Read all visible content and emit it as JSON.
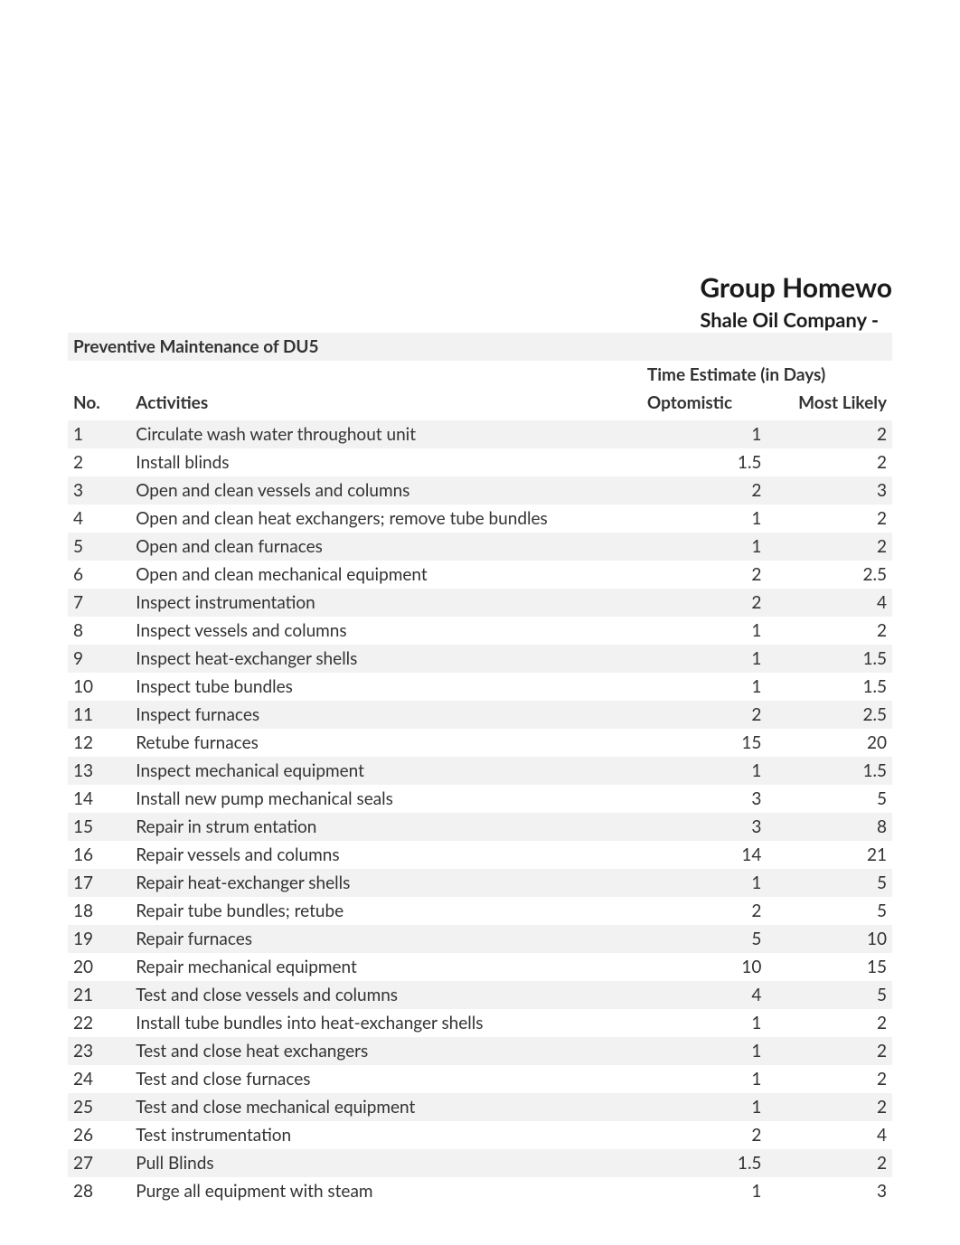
{
  "header": {
    "main_title": "Group Homewo",
    "sub_title": "Shale Oil Company -"
  },
  "section_title": "Preventive Maintenance of DU5",
  "table": {
    "estimate_header": "Time Estimate (in Days)",
    "columns": {
      "no": "No.",
      "activities": "Activities",
      "optimistic": "Optomistic",
      "most_likely": "Most Likely"
    },
    "rows": [
      {
        "no": "1",
        "activity": "Circulate wash water throughout unit",
        "opt": "1",
        "ml": "2"
      },
      {
        "no": "2",
        "activity": "Install blinds",
        "opt": "1.5",
        "ml": "2"
      },
      {
        "no": "3",
        "activity": "Open and clean vessels and columns",
        "opt": "2",
        "ml": "3"
      },
      {
        "no": "4",
        "activity": "Open and clean heat exchangers; remove tube bundles",
        "opt": "1",
        "ml": "2"
      },
      {
        "no": "5",
        "activity": "Open and clean furnaces",
        "opt": "1",
        "ml": "2"
      },
      {
        "no": "6",
        "activity": "Open and clean mechanical equipment",
        "opt": "2",
        "ml": "2.5"
      },
      {
        "no": "7",
        "activity": "Inspect instrumentation",
        "opt": "2",
        "ml": "4"
      },
      {
        "no": "8",
        "activity": "Inspect vessels and columns",
        "opt": "1",
        "ml": "2"
      },
      {
        "no": "9",
        "activity": "Inspect heat-exchanger shells",
        "opt": "1",
        "ml": "1.5"
      },
      {
        "no": "10",
        "activity": "Inspect tube bundles",
        "opt": "1",
        "ml": "1.5"
      },
      {
        "no": "11",
        "activity": "Inspect furnaces",
        "opt": "2",
        "ml": "2.5"
      },
      {
        "no": "12",
        "activity": "Retube furnaces",
        "opt": "15",
        "ml": "20"
      },
      {
        "no": "13",
        "activity": "Inspect mechanical equipment",
        "opt": "1",
        "ml": "1.5"
      },
      {
        "no": "14",
        "activity": "Install new  pump mechanical seals",
        "opt": "3",
        "ml": "5"
      },
      {
        "no": "15",
        "activity": "Repair in strum entation",
        "opt": "3",
        "ml": "8"
      },
      {
        "no": "16",
        "activity": "Repair vessels and columns",
        "opt": "14",
        "ml": "21"
      },
      {
        "no": "17",
        "activity": "Repair heat-exchanger shells",
        "opt": "1",
        "ml": "5"
      },
      {
        "no": "18",
        "activity": "Repair tube bundles; retube",
        "opt": "2",
        "ml": "5"
      },
      {
        "no": "19",
        "activity": "Repair furnaces",
        "opt": "5",
        "ml": "10"
      },
      {
        "no": "20",
        "activity": "Repair mechanical equipment",
        "opt": "10",
        "ml": "15"
      },
      {
        "no": "21",
        "activity": "Test and close vessels and columns",
        "opt": "4",
        "ml": "5"
      },
      {
        "no": "22",
        "activity": "Install tube bundles into heat-exchanger shells",
        "opt": "1",
        "ml": "2"
      },
      {
        "no": "23",
        "activity": "Test and close heat exchangers",
        "opt": "1",
        "ml": "2"
      },
      {
        "no": "24",
        "activity": "Test and close furnaces",
        "opt": "1",
        "ml": "2"
      },
      {
        "no": "25",
        "activity": "Test and close mechanical equipment",
        "opt": "1",
        "ml": "2"
      },
      {
        "no": "26",
        "activity": "Test instrumentation",
        "opt": "2",
        "ml": "4"
      },
      {
        "no": "27",
        "activity": "Pull Blinds",
        "opt": "1.5",
        "ml": "2"
      },
      {
        "no": "28",
        "activity": "Purge all equipment with steam",
        "opt": "1",
        "ml": "3"
      }
    ]
  },
  "styling": {
    "background_color": "#ffffff",
    "text_color": "#1a1a1a",
    "cell_text_color": "#333333",
    "alt_row_color": "#f2f2f2",
    "title_fontsize": 30,
    "subtitle_fontsize": 22,
    "body_fontsize": 19,
    "font_family": "Segoe UI, Lato, Arial, sans-serif",
    "column_widths": {
      "no": 60,
      "activities": 490,
      "opt": 120,
      "ml": 120
    }
  }
}
